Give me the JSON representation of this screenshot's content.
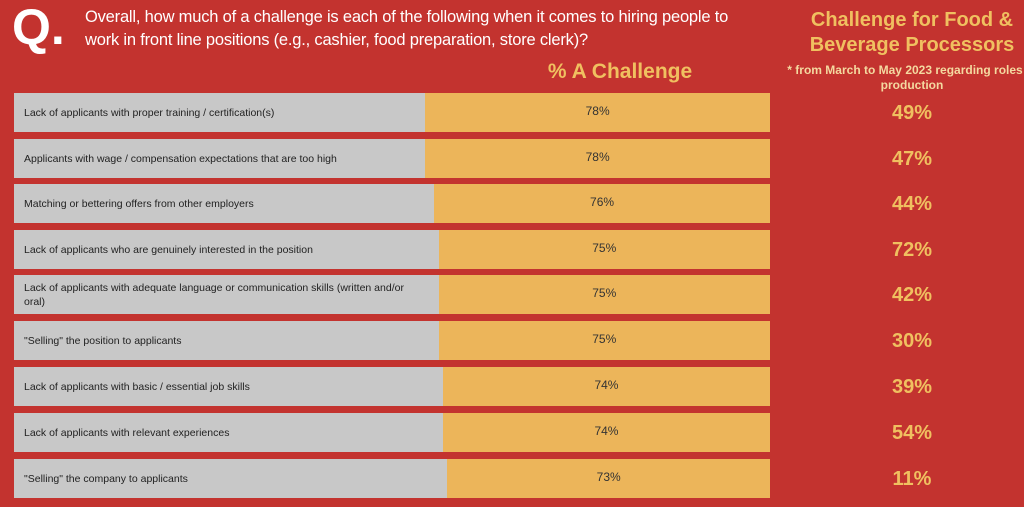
{
  "header": {
    "q_mark": "Q.",
    "question": "Overall, how much of a challenge is each of the following when it comes to hiring people to work in front line positions (e.g., cashier, food preparation, store clerk)?"
  },
  "chart_data": {
    "type": "bar",
    "title": "% A Challenge",
    "side_title": "Challenge for Food & Beverage Processors",
    "side_note": "* from March to May 2023 regarding roles in production",
    "categories": [
      "Lack of applicants with proper training / certification(s)",
      "Applicants with wage / compensation expectations that are too high",
      "Matching or bettering offers from other employers",
      "Lack of applicants who are genuinely interested in the position",
      "Lack of applicants with adequate language or communication skills (written and/or oral)",
      "\"Selling\" the position to applicants",
      "Lack of applicants with basic / essential job skills",
      "Lack of applicants with relevant experiences",
      "\"Selling\" the company to applicants"
    ],
    "series": [
      {
        "name": "% A Challenge",
        "values": [
          78,
          78,
          76,
          75,
          75,
          75,
          74,
          74,
          73
        ],
        "labels": [
          "78%",
          "78%",
          "76%",
          "75%",
          "75%",
          "75%",
          "74%",
          "74%",
          "73%"
        ]
      },
      {
        "name": "Challenge for Food & Beverage Processors",
        "values": [
          49,
          47,
          44,
          72,
          42,
          30,
          39,
          54,
          11
        ],
        "labels": [
          "49%",
          "47%",
          "44%",
          "72%",
          "42%",
          "30%",
          "39%",
          "54%",
          "11%"
        ]
      }
    ],
    "colors": {
      "bar": "#ecb55a",
      "track": "#c8c8c8",
      "background": "#c3332f"
    }
  }
}
